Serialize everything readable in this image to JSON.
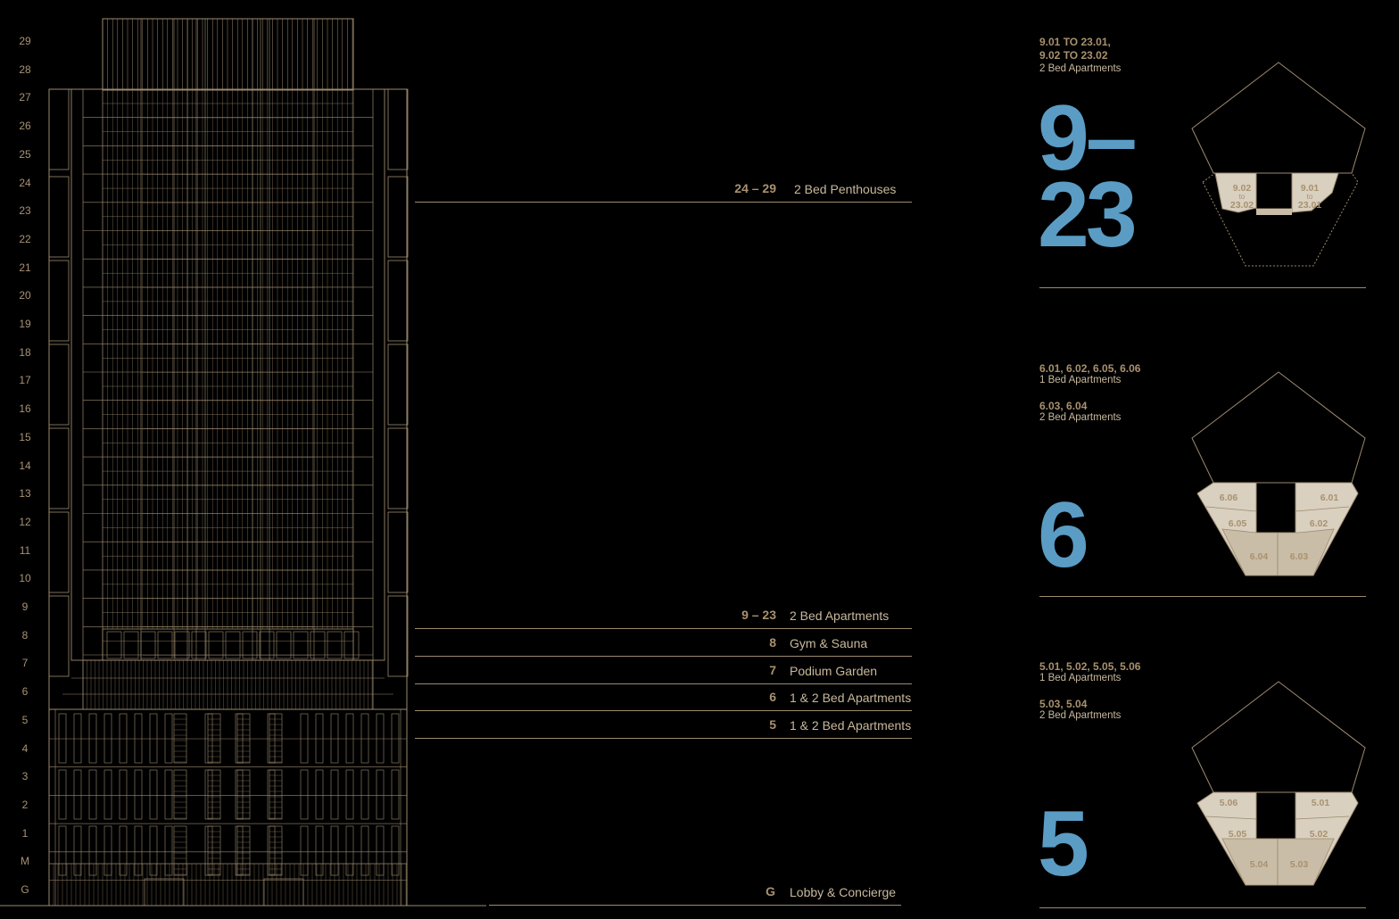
{
  "floors": [
    "29",
    "28",
    "27",
    "26",
    "25",
    "24",
    "23",
    "22",
    "21",
    "20",
    "19",
    "18",
    "17",
    "16",
    "15",
    "14",
    "13",
    "12",
    "11",
    "10",
    "9",
    "8",
    "7",
    "6",
    "5",
    "4",
    "3",
    "2",
    "1",
    "M",
    "G"
  ],
  "legend": [
    {
      "num": "24 – 29",
      "text": "2 Bed Penthouses"
    },
    {
      "num": "9 – 23",
      "text": "2 Bed Apartments"
    },
    {
      "num": "8",
      "text": "Gym & Sauna"
    },
    {
      "num": "7",
      "text": "Podium Garden"
    },
    {
      "num": "6",
      "text": "1 & 2 Bed Apartments"
    },
    {
      "num": "5",
      "text": "1 & 2 Bed Apartments"
    },
    {
      "num": "G",
      "text": "Lobby & Concierge"
    }
  ],
  "plans": [
    {
      "groups": [
        {
          "codes": "9.01 TO 23.01,\n9.02 TO 23.02",
          "type": "2 Bed Apartments"
        }
      ],
      "big": "9–\n23",
      "units": [
        {
          "label": "9.02\nto\n23.02"
        },
        {
          "label": "9.01\nto\n23.01"
        }
      ]
    },
    {
      "groups": [
        {
          "codes": "6.01, 6.02, 6.05, 6.06",
          "type": "1 Bed Apartments"
        },
        {
          "codes": "6.03, 6.04",
          "type": "2 Bed Apartments"
        }
      ],
      "big": "6",
      "units": [
        {
          "label": "6.06"
        },
        {
          "label": "6.01"
        },
        {
          "label": "6.05"
        },
        {
          "label": "6.02"
        },
        {
          "label": "6.04"
        },
        {
          "label": "6.03"
        }
      ]
    },
    {
      "groups": [
        {
          "codes": "5.01, 5.02, 5.05, 5.06",
          "type": "1 Bed Apartments"
        },
        {
          "codes": "5.03, 5.04",
          "type": "2 Bed Apartments"
        }
      ],
      "big": "5",
      "units": [
        {
          "label": "5.06"
        },
        {
          "label": "5.01"
        },
        {
          "label": "5.05"
        },
        {
          "label": "5.02"
        },
        {
          "label": "5.04"
        },
        {
          "label": "5.03"
        }
      ]
    }
  ],
  "colors": {
    "line": "#9d8a6e",
    "accent": "#5a9cc4",
    "unit_fill": "#d9d0c0",
    "unit_fill_dark": "#c9bda8"
  }
}
